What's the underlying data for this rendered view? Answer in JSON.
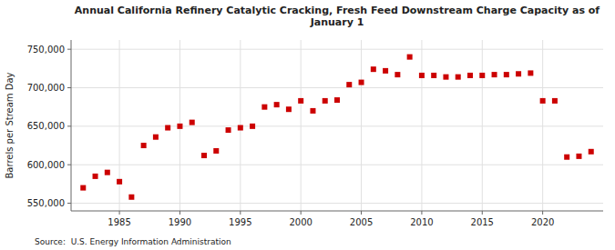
{
  "chart_data": {
    "type": "scatter",
    "title": "Annual California Refinery Catalytic Cracking, Fresh Feed Downstream Charge Capacity as of\nJanuary 1",
    "ylabel": "Barrels per Stream Day",
    "source": "Source:  U.S. Energy Information Administration",
    "x": [
      1982,
      1983,
      1984,
      1985,
      1986,
      1987,
      1988,
      1989,
      1990,
      1991,
      1992,
      1993,
      1994,
      1995,
      1996,
      1997,
      1998,
      1999,
      2000,
      2001,
      2002,
      2003,
      2004,
      2005,
      2006,
      2007,
      2008,
      2009,
      2010,
      2011,
      2012,
      2013,
      2014,
      2015,
      2016,
      2017,
      2018,
      2019,
      2020,
      2021,
      2022,
      2023,
      2024
    ],
    "values": [
      570000,
      585000,
      590000,
      578000,
      558000,
      625000,
      636000,
      648000,
      650000,
      655000,
      612000,
      618000,
      645000,
      648000,
      650000,
      675000,
      678000,
      672000,
      683000,
      670000,
      683000,
      684000,
      704000,
      707000,
      724000,
      722000,
      717000,
      740000,
      716000,
      716000,
      714000,
      714000,
      716000,
      716000,
      717000,
      717000,
      718000,
      719000,
      683000,
      683000,
      610000,
      611000,
      617000
    ],
    "color": "#cc0000",
    "marker": "square",
    "xlim": [
      1981,
      2025
    ],
    "xticks": [
      1985,
      1990,
      1995,
      2000,
      2005,
      2010,
      2015,
      2020
    ],
    "ylim": [
      540000,
      762000
    ],
    "yticks": [
      {
        "value": 550000,
        "label": "550,000"
      },
      {
        "value": 600000,
        "label": "600,000"
      },
      {
        "value": 650000,
        "label": "650,000"
      },
      {
        "value": 700000,
        "label": "700,000"
      },
      {
        "value": 750000,
        "label": "750,000"
      }
    ],
    "grid": true
  }
}
